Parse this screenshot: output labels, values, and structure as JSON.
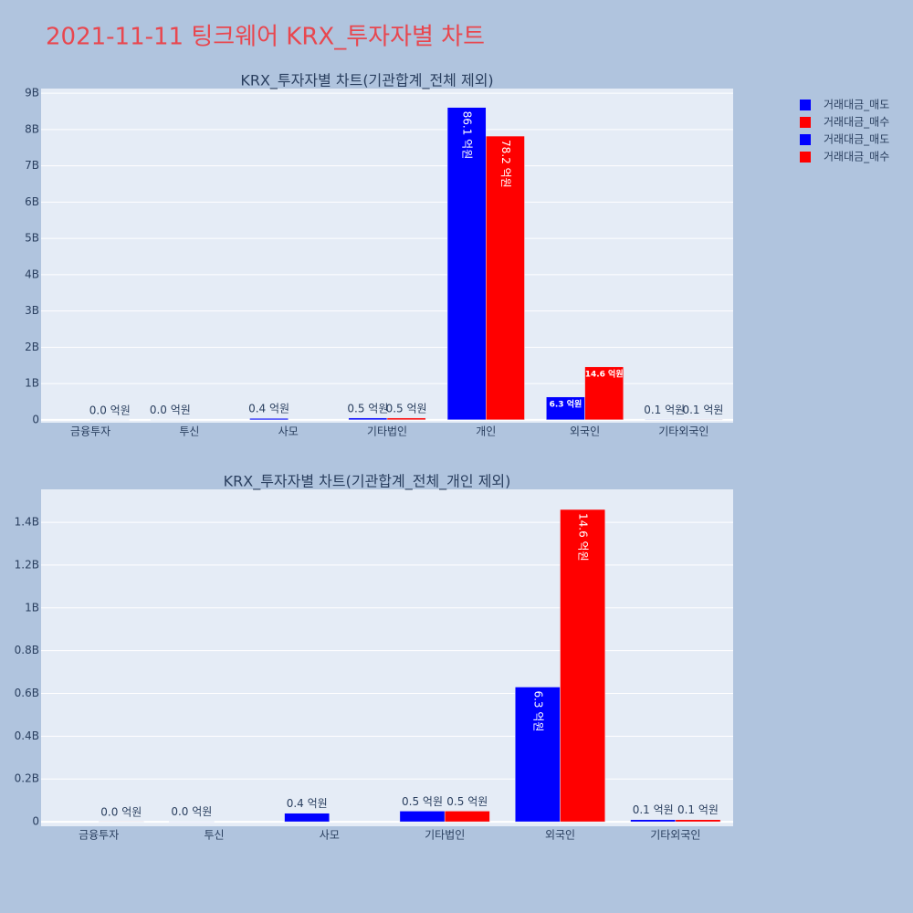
{
  "title": "2021-11-11 팅크웨어 KRX_투자자별 차트",
  "chart_data": [
    {
      "type": "bar",
      "title": "KRX_투자자별 차트(기관합계_전체 제외)",
      "categories": [
        "금융투자",
        "투신",
        "사모",
        "기타법인",
        "개인",
        "외국인",
        "기타외국인"
      ],
      "series": [
        {
          "name": "거래대금_매도",
          "color": "#0000ff",
          "values": [
            null,
            2000000,
            40000000,
            50000000,
            8610000000,
            630000000,
            10000000
          ],
          "value_labels": [
            null,
            "0.0 억원",
            "0.4 억원",
            "0.5 억원",
            "86.1 억원",
            "6.3 억원",
            "0.1 억원"
          ]
        },
        {
          "name": "거래대금_매수",
          "color": "#ff0000",
          "values": [
            1000000,
            null,
            null,
            50000000,
            7820000000,
            1460000000,
            10000000
          ],
          "value_labels": [
            "0.0 억원",
            null,
            null,
            "0.5 억원",
            "78.2 억원",
            "14.6 억원",
            "0.1 억원"
          ]
        }
      ],
      "ylim": [
        -80000000,
        9130000000
      ],
      "yticks": [
        0,
        {
          "value": 1000000000,
          "label": "1B"
        },
        {
          "value": 2000000000,
          "label": "2B"
        },
        {
          "value": 3000000000,
          "label": "3B"
        },
        {
          "value": 4000000000,
          "label": "4B"
        },
        {
          "value": 5000000000,
          "label": "5B"
        },
        {
          "value": 6000000000,
          "label": "6B"
        },
        {
          "value": 7000000000,
          "label": "7B"
        },
        {
          "value": 8000000000,
          "label": "8B"
        },
        {
          "value": 9000000000,
          "label": "9B"
        }
      ],
      "grid": true
    },
    {
      "type": "bar",
      "title": "KRX_투자자별 차트(기관합계_전체_개인 제외)",
      "categories": [
        "금융투자",
        "투신",
        "사모",
        "기타법인",
        "외국인",
        "기타외국인"
      ],
      "series": [
        {
          "name": "거래대금_매도",
          "color": "#0000ff",
          "values": [
            null,
            2000000,
            40000000,
            50000000,
            630000000,
            10000000
          ],
          "value_labels": [
            null,
            "0.0 억원",
            "0.4 억원",
            "0.5 억원",
            "6.3 억원",
            "0.1 억원"
          ]
        },
        {
          "name": "거래대금_매수",
          "color": "#ff0000",
          "values": [
            1000000,
            null,
            null,
            50000000,
            1460000000,
            10000000
          ],
          "value_labels": [
            "0.0 억원",
            null,
            null,
            "0.5 억원",
            "14.6 억원",
            "0.1 억원"
          ]
        }
      ],
      "ylim": [
        -21000000,
        1554000000
      ],
      "yticks": [
        0,
        {
          "value": 200000000,
          "label": "0.2B"
        },
        {
          "value": 400000000,
          "label": "0.4B"
        },
        {
          "value": 600000000,
          "label": "0.6B"
        },
        {
          "value": 800000000,
          "label": "0.8B"
        },
        {
          "value": 1000000000,
          "label": "1B"
        },
        {
          "value": 1200000000,
          "label": "1.2B"
        },
        {
          "value": 1400000000,
          "label": "1.4B"
        }
      ],
      "grid": true
    }
  ]
}
